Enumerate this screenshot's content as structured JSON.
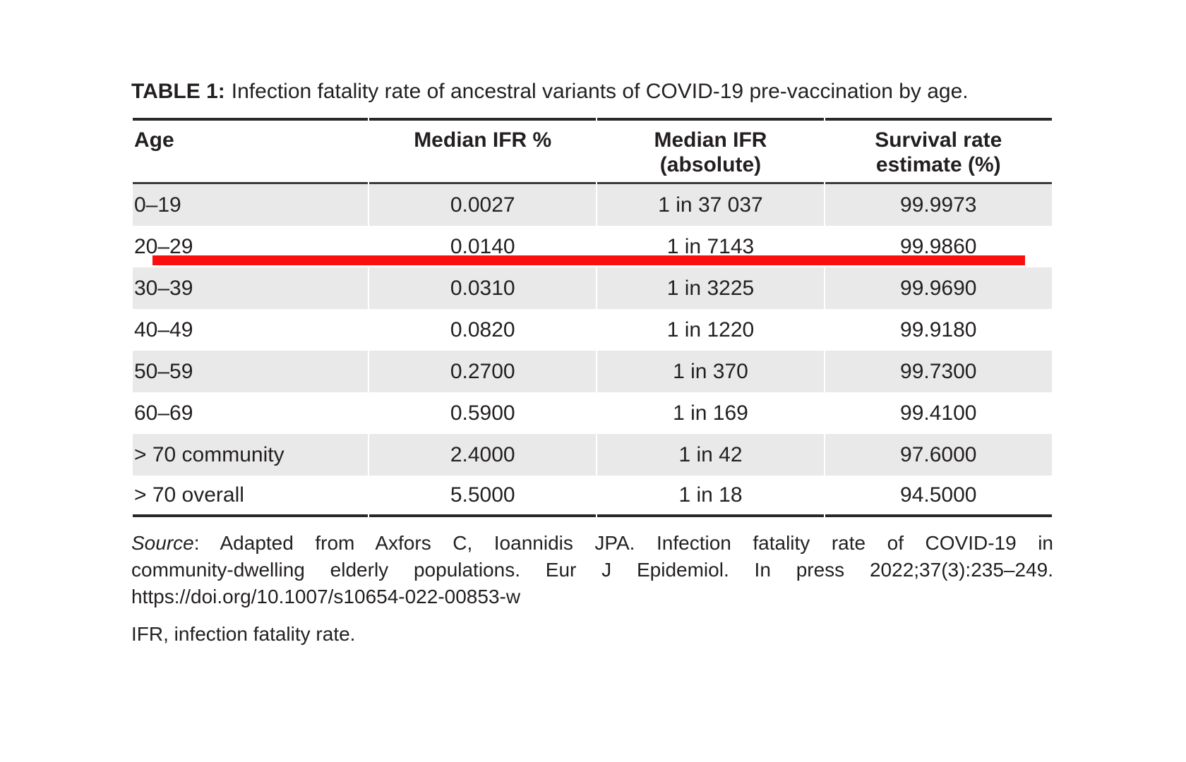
{
  "title": {
    "label": "TABLE 1:",
    "text": "Infection fatality rate of ancestral variants of COVID-19 pre-vaccination by age."
  },
  "table": {
    "columns": [
      {
        "line1": "Age",
        "line2": ""
      },
      {
        "line1": "Median IFR %",
        "line2": ""
      },
      {
        "line1": "Median IFR",
        "line2": "(absolute)"
      },
      {
        "line1": "Survival rate",
        "line2": "estimate (%)"
      }
    ],
    "rows": [
      {
        "age": "0–19",
        "ifr_pct": "0.0027",
        "ifr_abs": "1 in 37 037",
        "survival": "99.9973"
      },
      {
        "age": "20–29",
        "ifr_pct": "0.0140",
        "ifr_abs": "1 in 7143",
        "survival": "99.9860"
      },
      {
        "age": "30–39",
        "ifr_pct": "0.0310",
        "ifr_abs": "1 in 3225",
        "survival": "99.9690"
      },
      {
        "age": "40–49",
        "ifr_pct": "0.0820",
        "ifr_abs": "1 in 1220",
        "survival": "99.9180"
      },
      {
        "age": "50–59",
        "ifr_pct": "0.2700",
        "ifr_abs": "1 in 370",
        "survival": "99.7300"
      },
      {
        "age": "60–69",
        "ifr_pct": "0.5900",
        "ifr_abs": "1 in 169",
        "survival": "99.4100"
      },
      {
        "age": "> 70 community",
        "ifr_pct": "2.4000",
        "ifr_abs": "1 in 42",
        "survival": "97.6000"
      },
      {
        "age": "> 70 overall",
        "ifr_pct": "5.5000",
        "ifr_abs": "1 in 18",
        "survival": "94.5000"
      }
    ]
  },
  "annotation": {
    "type": "red-underline",
    "highlighted_row": "0–19",
    "color": "#fa0f0f"
  },
  "source": {
    "label": "Source",
    "line1_rest": ": Adapted from Axfors C, Ioannidis JPA. Infection fatality rate of COVID-19 in",
    "line2": "community-dwelling elderly populations. Eur J Epidemiol. In press 2022;37(3):235–249.",
    "line3": "https://doi.org/10.1007/s10654-022-00853-w"
  },
  "footnote": "IFR, infection fatality rate.",
  "colors": {
    "row_shade": "#e9e9e9",
    "border": "#282828",
    "text": "#231f20",
    "annotation_red": "#fa0f0f"
  }
}
